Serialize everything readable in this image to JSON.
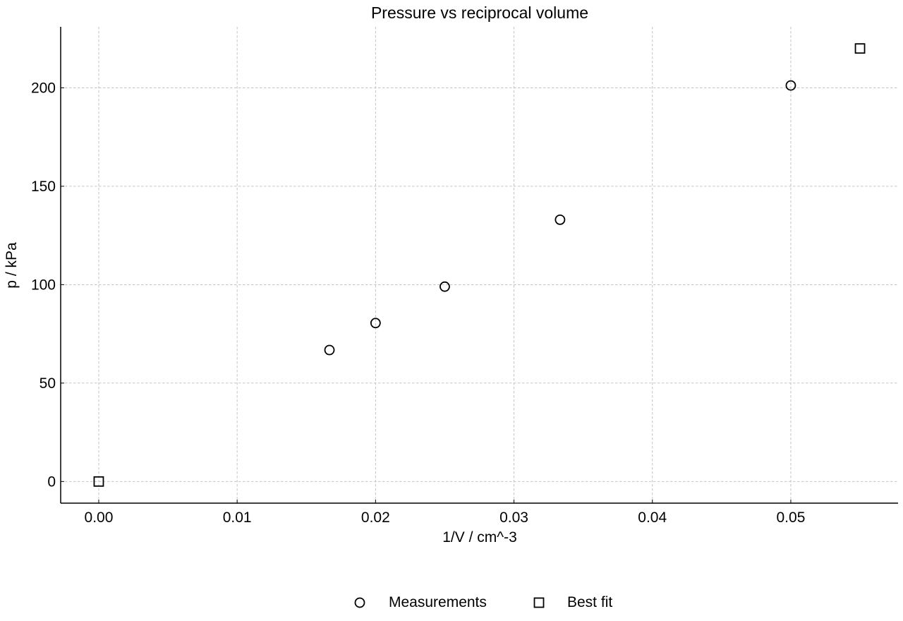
{
  "chart_data": {
    "type": "scatter",
    "title": "Pressure vs reciprocal volume",
    "xlabel": "1/V / cm^-3",
    "ylabel": "p / kPa",
    "xlim": [
      -0.00275,
      0.05775
    ],
    "ylim": [
      -11,
      231
    ],
    "x_ticks": [
      0.0,
      0.01,
      0.02,
      0.03,
      0.04,
      0.05
    ],
    "x_tick_labels": [
      "0.00",
      "0.01",
      "0.02",
      "0.03",
      "0.04",
      "0.05"
    ],
    "y_ticks": [
      0,
      50,
      100,
      150,
      200
    ],
    "y_tick_labels": [
      "0",
      "50",
      "100",
      "150",
      "200"
    ],
    "grid": true,
    "legend_position": "bottom-center",
    "series": [
      {
        "name": "Measurements",
        "marker": "circle",
        "color": "#000000",
        "x": [
          0.01667,
          0.02,
          0.025,
          0.03333,
          0.05
        ],
        "y": [
          66.8,
          80.5,
          99.0,
          133.0,
          201.2
        ]
      },
      {
        "name": "Best fit",
        "marker": "square",
        "color": "#000000",
        "x": [
          0.0,
          0.055
        ],
        "y": [
          0.0,
          220.0
        ]
      }
    ]
  }
}
